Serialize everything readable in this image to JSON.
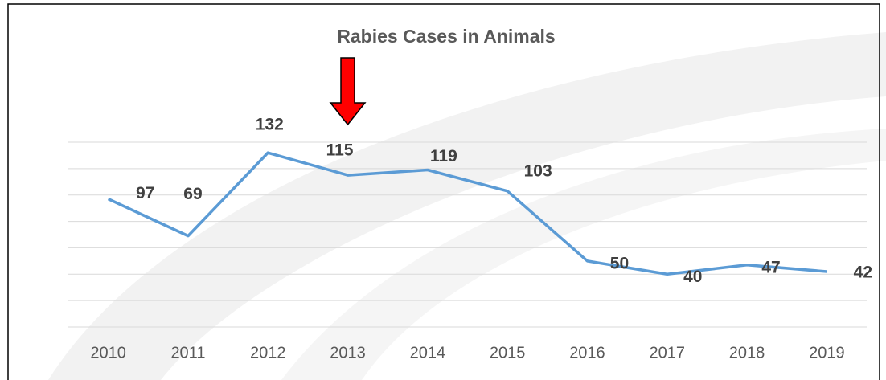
{
  "chart_data": {
    "type": "line",
    "title": "Rabies Cases in Animals",
    "categories": [
      "2010",
      "2011",
      "2012",
      "2013",
      "2014",
      "2015",
      "2016",
      "2017",
      "2018",
      "2019"
    ],
    "series": [
      {
        "name": "Rabies cases",
        "color": "#5b9bd5",
        "values": [
          97,
          69,
          132,
          115,
          119,
          103,
          50,
          40,
          47,
          42
        ]
      }
    ],
    "ylim": [
      0,
      140
    ],
    "yticks": [
      0,
      20,
      40,
      60,
      80,
      100,
      120,
      140
    ],
    "grid": true
  }
}
